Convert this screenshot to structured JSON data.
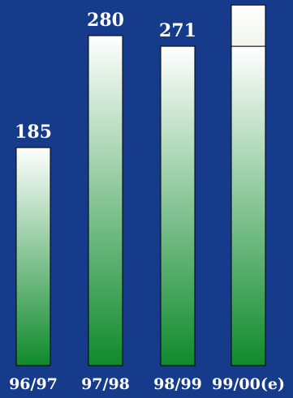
{
  "chart_data": {
    "type": "bar",
    "title": "",
    "xlabel": "",
    "ylabel": "",
    "categories": [
      "96/97",
      "97/98",
      "98/99",
      "99/00(e)"
    ],
    "values": [
      185,
      280,
      271,
      271
    ],
    "value_labels": [
      "185",
      "280",
      "271",
      ""
    ],
    "estimate_extra": [
      0,
      0,
      0,
      35
    ],
    "ylim": [
      0,
      330
    ],
    "grid": false,
    "colors": {
      "background": "#163b8a",
      "bar_top": "#ffffff",
      "bar_bottom": "#0f8a2c",
      "estimate_top": "#ffffff",
      "estimate_bottom": "#f1f4ec",
      "bar_stroke": "#000000"
    }
  }
}
